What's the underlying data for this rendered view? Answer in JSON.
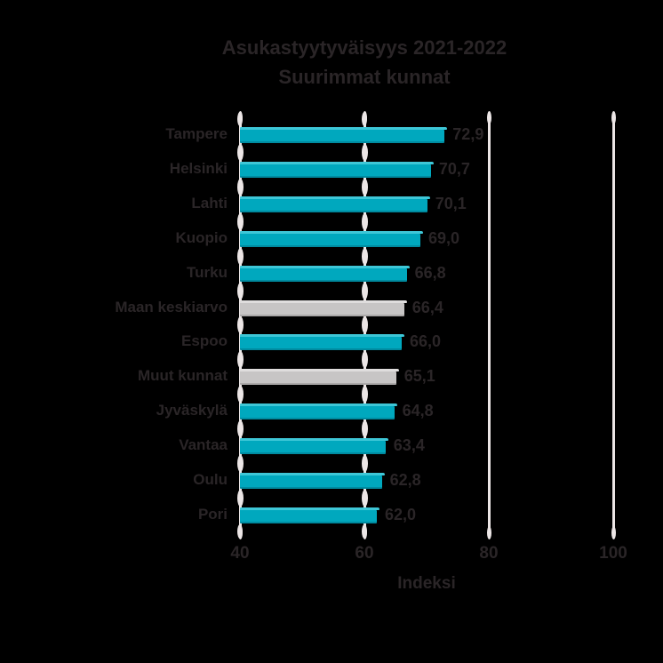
{
  "chart_data": {
    "type": "bar",
    "orientation": "horizontal",
    "title": "Asukastyytyväisyys 2021-2022",
    "subtitle": "Suurimmat kunnat",
    "xlabel": "Indeksi",
    "xlim": [
      40,
      100
    ],
    "xticks": [
      40,
      60,
      80,
      100
    ],
    "xtick_labels": [
      "40",
      "60",
      "80",
      "100"
    ],
    "grid": true,
    "legend": "none",
    "categories": [
      "Tampere",
      "Helsinki",
      "Lahti",
      "Kuopio",
      "Turku",
      "Maan keskiarvo",
      "Espoo",
      "Muut kunnat",
      "Jyväskylä",
      "Vantaa",
      "Oulu",
      "Pori"
    ],
    "values": [
      72.9,
      70.7,
      70.1,
      69.0,
      66.8,
      66.4,
      66.0,
      65.1,
      64.8,
      63.4,
      62.8,
      62.0
    ],
    "value_labels": [
      "72,9",
      "70,7",
      "70,1",
      "69,0",
      "66,8",
      "66,4",
      "66,0",
      "65,1",
      "64,8",
      "63,4",
      "62,8",
      "62,0"
    ],
    "series_key": [
      "city",
      "city",
      "city",
      "city",
      "city",
      "average",
      "city",
      "average",
      "city",
      "city",
      "city",
      "city"
    ],
    "colors": {
      "city_bar": "#00a8be",
      "city_bar_highlight": "#3ec7d7",
      "city_bar_shadow": "#008ba0",
      "average_bar": "#c7c5c5",
      "average_bar_highlight": "#dfdddd",
      "average_bar_shadow": "#aaa8a8",
      "gridline": "#ece6e6",
      "text": "#2a2527",
      "background": "#000000"
    }
  }
}
